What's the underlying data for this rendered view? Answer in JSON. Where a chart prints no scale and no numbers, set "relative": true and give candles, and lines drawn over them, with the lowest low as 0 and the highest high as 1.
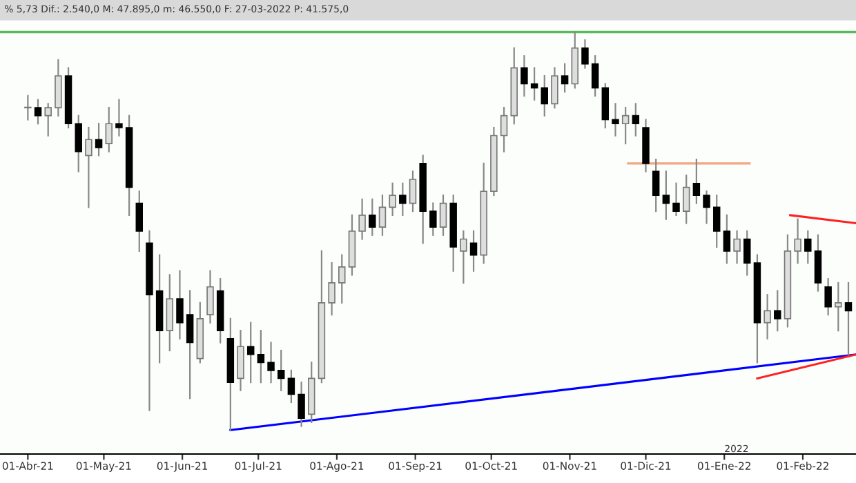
{
  "chart_data": {
    "type": "candlestick",
    "relative": true,
    "annotations": [
      "% 5,73 Dif.: 2.540,0 M: 47.895,0 m: 46.550,0 F: 27-03-2022 P: 41.575,0",
      "2022"
    ],
    "x": [
      "2021-04-01",
      "2021-04-05",
      "2021-04-09",
      "2021-04-13",
      "2021-04-17",
      "2021-04-21",
      "2021-04-25",
      "2021-04-29",
      "2021-05-03",
      "2021-05-07",
      "2021-05-11",
      "2021-05-15",
      "2021-05-19",
      "2021-05-23",
      "2021-05-27",
      "2021-05-31",
      "2021-06-04",
      "2021-06-08",
      "2021-06-12",
      "2021-06-16",
      "2021-06-20",
      "2021-06-24",
      "2021-06-28",
      "2021-07-02",
      "2021-07-06",
      "2021-07-10",
      "2021-07-14",
      "2021-07-18",
      "2021-07-22",
      "2021-07-26",
      "2021-07-30",
      "2021-08-03",
      "2021-08-07",
      "2021-08-11",
      "2021-08-15",
      "2021-08-19",
      "2021-08-23",
      "2021-08-27",
      "2021-08-31",
      "2021-09-04",
      "2021-09-08",
      "2021-09-12",
      "2021-09-16",
      "2021-09-20",
      "2021-09-24",
      "2021-09-28",
      "2021-10-02",
      "2021-10-06",
      "2021-10-10",
      "2021-10-14",
      "2021-10-18",
      "2021-10-22",
      "2021-10-26",
      "2021-10-30",
      "2021-11-03",
      "2021-11-07",
      "2021-11-11",
      "2021-11-15",
      "2021-11-19",
      "2021-11-23",
      "2021-11-27",
      "2021-12-01",
      "2021-12-05",
      "2021-12-09",
      "2021-12-13",
      "2021-12-17",
      "2021-12-21",
      "2021-12-25",
      "2021-12-29",
      "2022-01-02",
      "2022-01-06",
      "2022-01-10",
      "2022-01-14",
      "2022-01-18",
      "2022-01-22",
      "2022-01-26",
      "2022-01-30",
      "2022-02-03",
      "2022-02-07",
      "2022-02-11",
      "2022-02-15",
      "2022-02-19"
    ],
    "ohlc": [
      [
        0.81,
        0.84,
        0.78,
        0.81
      ],
      [
        0.81,
        0.83,
        0.77,
        0.79
      ],
      [
        0.79,
        0.82,
        0.74,
        0.81
      ],
      [
        0.81,
        0.93,
        0.79,
        0.89
      ],
      [
        0.89,
        0.91,
        0.76,
        0.77
      ],
      [
        0.77,
        0.79,
        0.65,
        0.7
      ],
      [
        0.69,
        0.76,
        0.56,
        0.73
      ],
      [
        0.73,
        0.77,
        0.69,
        0.71
      ],
      [
        0.72,
        0.81,
        0.7,
        0.77
      ],
      [
        0.77,
        0.83,
        0.74,
        0.76
      ],
      [
        0.76,
        0.79,
        0.54,
        0.61
      ],
      [
        0.57,
        0.6,
        0.45,
        0.5
      ],
      [
        0.47,
        0.5,
        0.05,
        0.34
      ],
      [
        0.35,
        0.44,
        0.17,
        0.25
      ],
      [
        0.25,
        0.39,
        0.2,
        0.33
      ],
      [
        0.33,
        0.4,
        0.23,
        0.27
      ],
      [
        0.29,
        0.35,
        0.08,
        0.22
      ],
      [
        0.18,
        0.32,
        0.17,
        0.28
      ],
      [
        0.29,
        0.4,
        0.27,
        0.36
      ],
      [
        0.35,
        0.38,
        0.22,
        0.25
      ],
      [
        0.23,
        0.28,
        0.0,
        0.12
      ],
      [
        0.13,
        0.25,
        0.1,
        0.21
      ],
      [
        0.21,
        0.27,
        0.12,
        0.19
      ],
      [
        0.19,
        0.25,
        0.12,
        0.17
      ],
      [
        0.17,
        0.22,
        0.12,
        0.15
      ],
      [
        0.15,
        0.2,
        0.1,
        0.13
      ],
      [
        0.13,
        0.15,
        0.07,
        0.09
      ],
      [
        0.09,
        0.12,
        0.01,
        0.03
      ],
      [
        0.04,
        0.17,
        0.02,
        0.13
      ],
      [
        0.13,
        0.45,
        0.12,
        0.32
      ],
      [
        0.32,
        0.42,
        0.29,
        0.37
      ],
      [
        0.37,
        0.44,
        0.32,
        0.41
      ],
      [
        0.41,
        0.54,
        0.39,
        0.5
      ],
      [
        0.5,
        0.58,
        0.48,
        0.54
      ],
      [
        0.54,
        0.58,
        0.49,
        0.51
      ],
      [
        0.51,
        0.59,
        0.49,
        0.56
      ],
      [
        0.56,
        0.62,
        0.54,
        0.59
      ],
      [
        0.59,
        0.62,
        0.54,
        0.57
      ],
      [
        0.57,
        0.65,
        0.55,
        0.63
      ],
      [
        0.67,
        0.69,
        0.47,
        0.55
      ],
      [
        0.55,
        0.57,
        0.49,
        0.51
      ],
      [
        0.51,
        0.59,
        0.49,
        0.57
      ],
      [
        0.57,
        0.59,
        0.4,
        0.46
      ],
      [
        0.45,
        0.5,
        0.37,
        0.48
      ],
      [
        0.47,
        0.5,
        0.4,
        0.44
      ],
      [
        0.44,
        0.67,
        0.42,
        0.6
      ],
      [
        0.6,
        0.76,
        0.59,
        0.74
      ],
      [
        0.74,
        0.81,
        0.7,
        0.79
      ],
      [
        0.79,
        0.96,
        0.77,
        0.91
      ],
      [
        0.91,
        0.94,
        0.84,
        0.87
      ],
      [
        0.87,
        0.91,
        0.83,
        0.86
      ],
      [
        0.86,
        0.89,
        0.79,
        0.82
      ],
      [
        0.82,
        0.91,
        0.81,
        0.89
      ],
      [
        0.89,
        0.92,
        0.85,
        0.87
      ],
      [
        0.87,
        1.0,
        0.86,
        0.96
      ],
      [
        0.96,
        0.98,
        0.91,
        0.92
      ],
      [
        0.92,
        0.94,
        0.84,
        0.86
      ],
      [
        0.86,
        0.87,
        0.76,
        0.78
      ],
      [
        0.78,
        0.82,
        0.74,
        0.77
      ],
      [
        0.77,
        0.81,
        0.72,
        0.79
      ],
      [
        0.79,
        0.82,
        0.74,
        0.77
      ],
      [
        0.76,
        0.78,
        0.65,
        0.67
      ],
      [
        0.65,
        0.68,
        0.55,
        0.59
      ],
      [
        0.59,
        0.65,
        0.53,
        0.57
      ],
      [
        0.57,
        0.62,
        0.54,
        0.55
      ],
      [
        0.55,
        0.64,
        0.52,
        0.61
      ],
      [
        0.62,
        0.68,
        0.57,
        0.59
      ],
      [
        0.59,
        0.6,
        0.52,
        0.56
      ],
      [
        0.56,
        0.59,
        0.46,
        0.5
      ],
      [
        0.5,
        0.54,
        0.42,
        0.45
      ],
      [
        0.45,
        0.5,
        0.42,
        0.48
      ],
      [
        0.48,
        0.5,
        0.39,
        0.42
      ],
      [
        0.42,
        0.44,
        0.17,
        0.27
      ],
      [
        0.27,
        0.34,
        0.23,
        0.3
      ],
      [
        0.3,
        0.35,
        0.25,
        0.28
      ],
      [
        0.28,
        0.49,
        0.26,
        0.45
      ],
      [
        0.45,
        0.53,
        0.42,
        0.48
      ],
      [
        0.48,
        0.5,
        0.42,
        0.45
      ],
      [
        0.45,
        0.49,
        0.35,
        0.37
      ],
      [
        0.36,
        0.38,
        0.29,
        0.31
      ],
      [
        0.31,
        0.37,
        0.25,
        0.32
      ],
      [
        0.32,
        0.37,
        0.19,
        0.3
      ]
    ],
    "series": [
      {
        "type": "line",
        "color": "#0000ff",
        "x": [
          "2021-06-20",
          "2022-02-22"
        ],
        "values": [
          0.0,
          0.19
        ]
      },
      {
        "type": "line",
        "color": "#f4a582",
        "x": [
          "2021-11-24",
          "2022-01-11"
        ],
        "values": [
          0.67,
          0.67
        ]
      },
      {
        "type": "line",
        "color": "#ff2020",
        "x": [
          "2022-01-27",
          "2022-02-22"
        ],
        "values": [
          0.54,
          0.52
        ]
      },
      {
        "type": "line",
        "color": "#ff2020",
        "x": [
          "2022-01-14",
          "2022-02-22"
        ],
        "values": [
          0.13,
          0.19
        ]
      }
    ],
    "ref_lines": [
      {
        "axis": "y",
        "value": 1.0,
        "color": "#5cb85c"
      }
    ],
    "xlim": [
      "2021-03-21",
      "2022-02-22"
    ],
    "xticks": [
      {
        "value": "2021-04-01",
        "label": "01-Abr-21"
      },
      {
        "value": "2021-05-01",
        "label": "01-May-21"
      },
      {
        "value": "2021-06-01",
        "label": "01-Jun-21"
      },
      {
        "value": "2021-07-01",
        "label": "01-Jul-21"
      },
      {
        "value": "2021-08-01",
        "label": "01-Ago-21"
      },
      {
        "value": "2021-09-01",
        "label": "01-Sep-21"
      },
      {
        "value": "2021-10-01",
        "label": "01-Oct-21"
      },
      {
        "value": "2021-11-01",
        "label": "01-Nov-21"
      },
      {
        "value": "2021-12-01",
        "label": "01-Dic-21"
      },
      {
        "value": "2022-01-01",
        "label": "01-Ene-22"
      },
      {
        "value": "2022-02-01",
        "label": "01-Feb-22"
      }
    ],
    "tick_labels": "x",
    "grid": false,
    "legend": false
  }
}
